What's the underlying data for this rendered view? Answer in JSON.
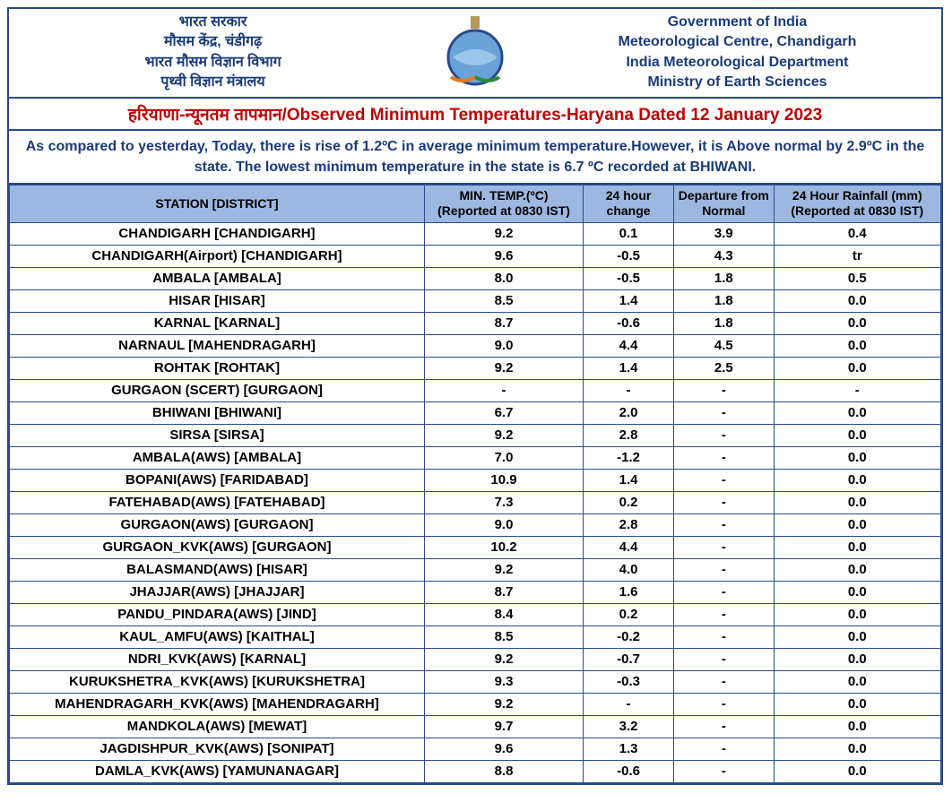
{
  "header": {
    "left_lines": [
      "भारत सरकार",
      "मौसम  केंद्र, चंडीगढ़",
      "भारत  मौसम  विज्ञान  विभाग",
      "पृथ्वी  विज्ञान  मंत्रालय"
    ],
    "right_lines": [
      "Government of India",
      "Meteorological Centre, Chandigarh",
      "India Meteorological Department",
      "Ministry of Earth Sciences"
    ]
  },
  "title": {
    "hindi": "हरियाणा-न्यूनतम तापमान",
    "separator": "/",
    "english": "Observed Minimum Temperatures-Haryana Dated 12 January 2023"
  },
  "summary": "As compared to yesterday, Today, there is rise of 1.2ºC in average minimum temperature.However, it is Above normal by 2.9ºC in the state. The lowest minimum temperature in the state is 6.7 ºC recorded at BHIWANI.",
  "columns": {
    "station": "STATION  [DISTRICT]",
    "min_temp_l1": "MIN. TEMP.(ºC)",
    "min_temp_l2": "(Reported at 0830 IST)",
    "change": "24 hour change",
    "departure": "Departure from Normal",
    "rain_l1": "24 Hour Rainfall (mm)",
    "rain_l2": "(Reported at 0830 IST)"
  },
  "rows": [
    {
      "station": "CHANDIGARH  [CHANDIGARH]",
      "min": "9.2",
      "chg": "0.1",
      "dep": "3.9",
      "rain": "0.4",
      "rain_cls": "val-red"
    },
    {
      "station": "CHANDIGARH(Airport)  [CHANDIGARH]",
      "min": "9.6",
      "chg": "-0.5",
      "dep": "4.3",
      "rain": "tr",
      "rain_cls": "val-red"
    },
    {
      "station": "AMBALA  [AMBALA]",
      "min": "8.0",
      "chg": "-0.5",
      "dep": "1.8",
      "rain": "0.5",
      "rain_cls": "val-red"
    },
    {
      "station": "HISAR  [HISAR]",
      "min": "8.5",
      "chg": "1.4",
      "dep": "1.8",
      "rain": "0.0"
    },
    {
      "station": "KARNAL  [KARNAL]",
      "min": "8.7",
      "chg": "-0.6",
      "dep": "1.8",
      "rain": "0.0"
    },
    {
      "station": "NARNAUL  [MAHENDRAGARH]",
      "min": "9.0",
      "chg": "4.4",
      "dep": "4.5",
      "rain": "0.0"
    },
    {
      "station": "ROHTAK  [ROHTAK]",
      "min": "9.2",
      "chg": "1.4",
      "dep": "2.5",
      "rain": "0.0"
    },
    {
      "station": "GURGAON (SCERT)  [GURGAON]",
      "min": "-",
      "chg": "-",
      "dep": "-",
      "rain": "-",
      "rain_cls": "val-red"
    },
    {
      "station": "BHIWANI  [BHIWANI]",
      "min": "6.7",
      "min_cls": "val-blue",
      "chg": "2.0",
      "dep": "-",
      "rain": "0.0"
    },
    {
      "station": "SIRSA  [SIRSA]",
      "min": "9.2",
      "chg": "2.8",
      "dep": "-",
      "rain": "0.0"
    },
    {
      "station": "AMBALA(AWS)  [AMBALA]",
      "min": "7.0",
      "chg": "-1.2",
      "dep": "-",
      "rain": "0.0"
    },
    {
      "station": "BOPANI(AWS)  [FARIDABAD]",
      "min": "10.9",
      "chg": "1.4",
      "dep": "-",
      "rain": "0.0"
    },
    {
      "station": "FATEHABAD(AWS)  [FATEHABAD]",
      "min": "7.3",
      "chg": "0.2",
      "dep": "-",
      "rain": "0.0"
    },
    {
      "station": "GURGAON(AWS)  [GURGAON]",
      "min": "9.0",
      "chg": "2.8",
      "dep": "-",
      "rain": "0.0"
    },
    {
      "station": "GURGAON_KVK(AWS)  [GURGAON]",
      "min": "10.2",
      "chg": "4.4",
      "dep": "-",
      "rain": "0.0"
    },
    {
      "station": "BALASMAND(AWS)  [HISAR]",
      "min": "9.2",
      "chg": "4.0",
      "dep": "-",
      "rain": "0.0"
    },
    {
      "station": "JHAJJAR(AWS)  [JHAJJAR]",
      "min": "8.7",
      "chg": "1.6",
      "dep": "-",
      "rain": "0.0"
    },
    {
      "station": "PANDU_PINDARA(AWS)  [JIND]",
      "min": "8.4",
      "chg": "0.2",
      "dep": "-",
      "rain": "0.0"
    },
    {
      "station": "KAUL_AMFU(AWS)  [KAITHAL]",
      "min": "8.5",
      "chg": "-0.2",
      "dep": "-",
      "rain": "0.0"
    },
    {
      "station": "NDRI_KVK(AWS)  [KARNAL]",
      "min": "9.2",
      "chg": "-0.7",
      "dep": "-",
      "rain": "0.0"
    },
    {
      "station": "KURUKSHETRA_KVK(AWS)  [KURUKSHETRA]",
      "min": "9.3",
      "chg": "-0.3",
      "dep": "-",
      "rain": "0.0"
    },
    {
      "station": "MAHENDRAGARH_KVK(AWS)  [MAHENDRAGARH]",
      "min": "9.2",
      "chg": "-",
      "dep": "-",
      "rain": "0.0"
    },
    {
      "station": "MANDKOLA(AWS)  [MEWAT]",
      "min": "9.7",
      "chg": "3.2",
      "dep": "-",
      "rain": "0.0"
    },
    {
      "station": "JAGDISHPUR_KVK(AWS)  [SONIPAT]",
      "min": "9.6",
      "chg": "1.3",
      "dep": "-",
      "rain": "0.0"
    },
    {
      "station": "DAMLA_KVK(AWS)  [YAMUNANAGAR]",
      "min": "8.8",
      "chg": "-0.6",
      "dep": "-",
      "rain": "0.0"
    }
  ]
}
